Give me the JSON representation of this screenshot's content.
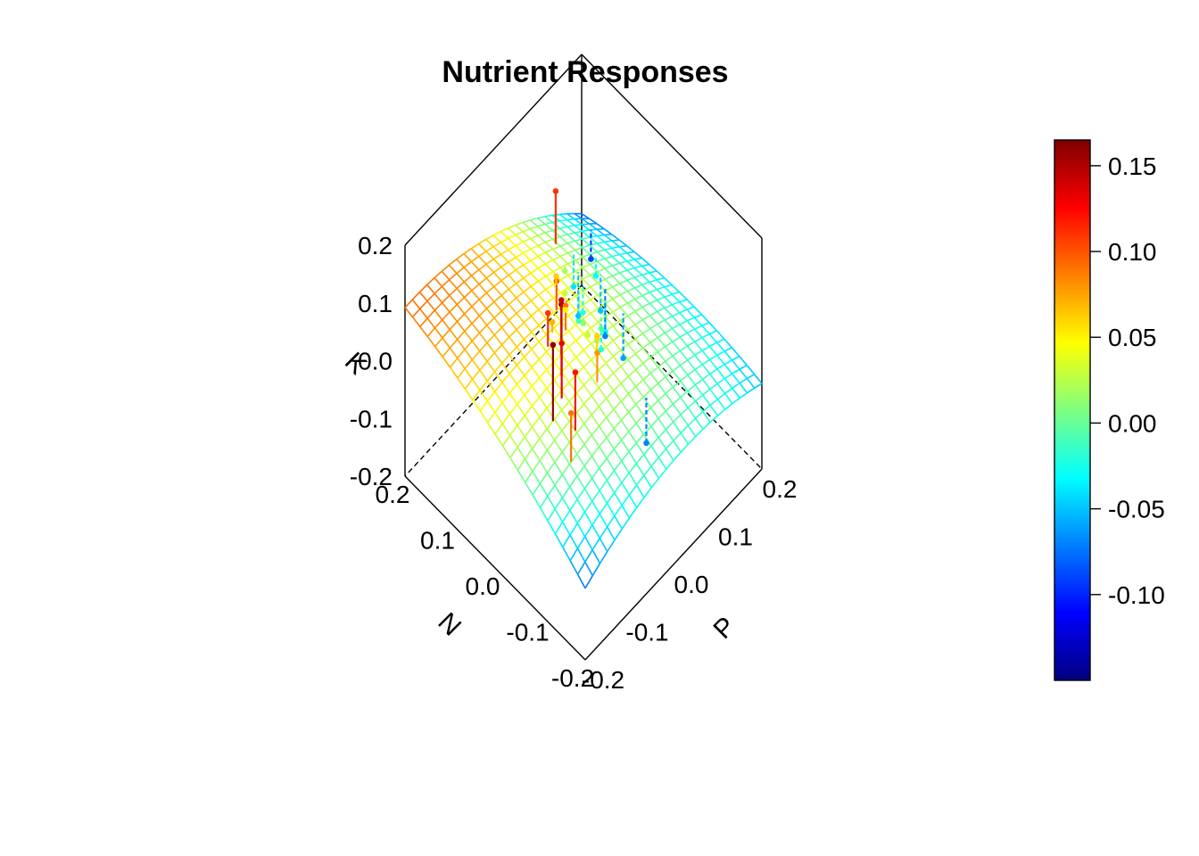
{
  "chart_data": {
    "type": "surface3d",
    "title": "Nutrient Responses",
    "axes": {
      "x": {
        "label": "N",
        "range": [
          -0.2,
          0.2
        ],
        "ticks": [
          "-0.2",
          "-0.1",
          "0.0",
          "0.1",
          "0.2"
        ]
      },
      "y": {
        "label": "P",
        "range": [
          -0.2,
          0.2
        ],
        "ticks": [
          "-0.2",
          "-0.1",
          "0.0",
          "0.1",
          "0.2"
        ]
      },
      "z": {
        "label": "K",
        "range": [
          -0.2,
          0.2
        ],
        "ticks": [
          "-0.2",
          "-0.1",
          "0.0",
          "0.1",
          "0.2"
        ]
      }
    },
    "surface": {
      "grid_n": 24,
      "model": "z = 0.02 + 0.30*(N - P)/0.4*0.4 - 1.2*(N+P)^2 + 0.8*N*P"
    },
    "colorbar": {
      "range": [
        -0.15,
        0.165
      ],
      "ticks": [
        "0.15",
        "0.10",
        "0.05",
        "0.00",
        "-0.05",
        "-0.10"
      ],
      "tick_values": [
        0.15,
        0.1,
        0.05,
        0.0,
        -0.05,
        -0.1
      ],
      "palette": [
        "#00007F",
        "#0000FF",
        "#007FFF",
        "#00FFFF",
        "#7FFF7F",
        "#FFFF00",
        "#FF7F00",
        "#FF0000",
        "#7F0000"
      ]
    },
    "points": [
      {
        "x": -0.05,
        "y": -0.12,
        "z": 0.16,
        "fit": 0.03
      },
      {
        "x": -0.02,
        "y": -0.07,
        "z": 0.165,
        "fit": 0.05
      },
      {
        "x": 0.0,
        "y": -0.05,
        "z": 0.14,
        "fit": 0.04
      },
      {
        "x": -0.08,
        "y": -0.1,
        "z": 0.12,
        "fit": 0.04
      },
      {
        "x": -0.04,
        "y": -0.09,
        "z": 0.13,
        "fit": 0.04
      },
      {
        "x": 0.02,
        "y": -0.06,
        "z": 0.11,
        "fit": 0.02
      },
      {
        "x": -0.1,
        "y": -0.13,
        "z": 0.09,
        "fit": 0.05
      },
      {
        "x": 0.05,
        "y": -0.01,
        "z": 0.1,
        "fit": 0.02
      },
      {
        "x": 0.08,
        "y": 0.02,
        "z": 0.06,
        "fit": 0.01
      },
      {
        "x": 0.1,
        "y": 0.06,
        "z": 0.02,
        "fit": -0.03
      },
      {
        "x": 0.14,
        "y": 0.08,
        "z": 0.11,
        "fit": 0.0
      },
      {
        "x": 0.02,
        "y": -0.02,
        "z": 0.09,
        "fit": 0.02
      },
      {
        "x": 0.04,
        "y": 0.0,
        "z": 0.05,
        "fit": 0.02
      },
      {
        "x": 0.0,
        "y": 0.01,
        "z": 0.03,
        "fit": 0.01
      },
      {
        "x": 0.03,
        "y": 0.03,
        "z": 0.01,
        "fit": 0.0
      },
      {
        "x": -0.01,
        "y": 0.02,
        "z": 0.02,
        "fit": 0.0
      },
      {
        "x": 0.05,
        "y": 0.04,
        "z": -0.01,
        "fit": -0.01
      },
      {
        "x": 0.01,
        "y": 0.05,
        "z": 0.0,
        "fit": -0.01
      },
      {
        "x": 0.06,
        "y": 0.06,
        "z": -0.02,
        "fit": -0.03
      },
      {
        "x": -0.03,
        "y": 0.0,
        "z": 0.06,
        "fit": 0.01
      },
      {
        "x": 0.07,
        "y": 0.03,
        "z": 0.03,
        "fit": -0.01
      },
      {
        "x": 0.02,
        "y": 0.07,
        "z": -0.03,
        "fit": -0.03
      },
      {
        "x": -0.12,
        "y": 0.02,
        "z": -0.07,
        "fit": 0.03
      },
      {
        "x": -0.01,
        "y": 0.08,
        "z": -0.06,
        "fit": -0.02
      },
      {
        "x": 0.06,
        "y": 0.1,
        "z": -0.05,
        "fit": -0.05
      },
      {
        "x": 0.11,
        "y": 0.09,
        "z": -0.04,
        "fit": -0.05
      },
      {
        "x": 0.09,
        "y": 0.12,
        "z": -0.03,
        "fit": -0.07
      },
      {
        "x": 0.04,
        "y": 0.09,
        "z": -0.07,
        "fit": -0.04
      },
      {
        "x": 0.15,
        "y": 0.17,
        "z": -0.09,
        "fit": -0.11
      },
      {
        "x": -0.06,
        "y": -0.03,
        "z": 0.08,
        "fit": 0.03
      },
      {
        "x": 0.03,
        "y": -0.04,
        "z": 0.07,
        "fit": 0.03
      },
      {
        "x": 0.0,
        "y": 0.04,
        "z": -0.02,
        "fit": 0.0
      },
      {
        "x": 0.08,
        "y": 0.07,
        "z": -0.05,
        "fit": -0.03
      }
    ]
  }
}
